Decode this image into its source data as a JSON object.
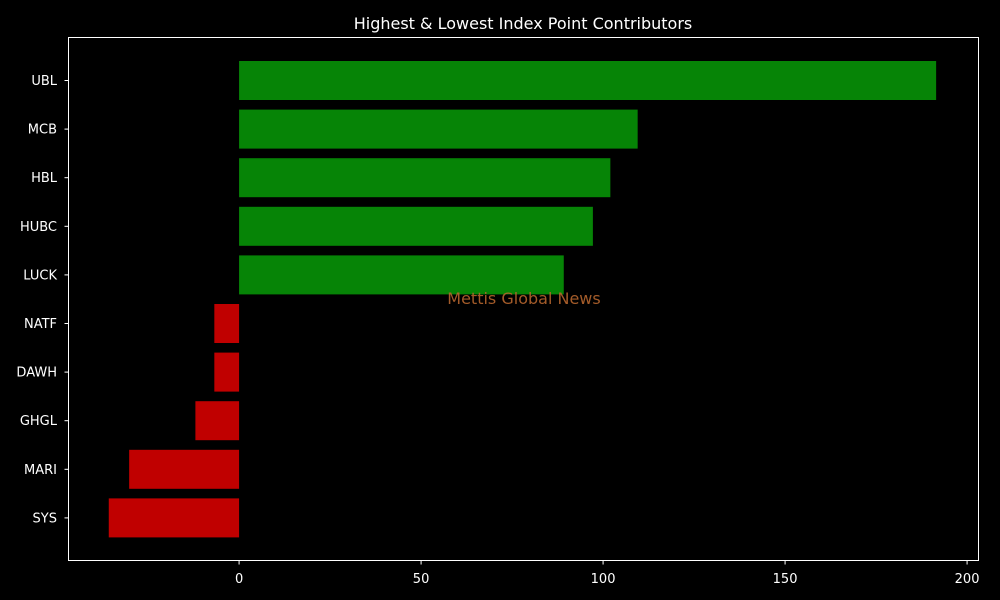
{
  "chart_data": {
    "type": "bar",
    "orientation": "horizontal",
    "title": "Highest & Lowest Index Point Contributors",
    "xlabel": "",
    "ylabel": "",
    "categories": [
      "UBL",
      "MCB",
      "HBL",
      "HUBC",
      "LUCK",
      "NATF",
      "DAWH",
      "GHGL",
      "MARI",
      "SYS"
    ],
    "values": [
      191.5,
      109.5,
      102,
      97.2,
      89.2,
      -6.8,
      -6.8,
      -12,
      -30.2,
      -35.8
    ],
    "xlim": [
      -47,
      203
    ],
    "xticks": [
      0,
      50,
      100,
      150,
      200
    ],
    "grid": false,
    "legend": "none",
    "colors": {
      "positive": "#068406",
      "negative": "#c00000",
      "background": "#000000",
      "axes": "#ffffff",
      "text": "#ffffff"
    }
  },
  "watermark": {
    "text": "Mettis Global News",
    "color": "#b5652e"
  }
}
